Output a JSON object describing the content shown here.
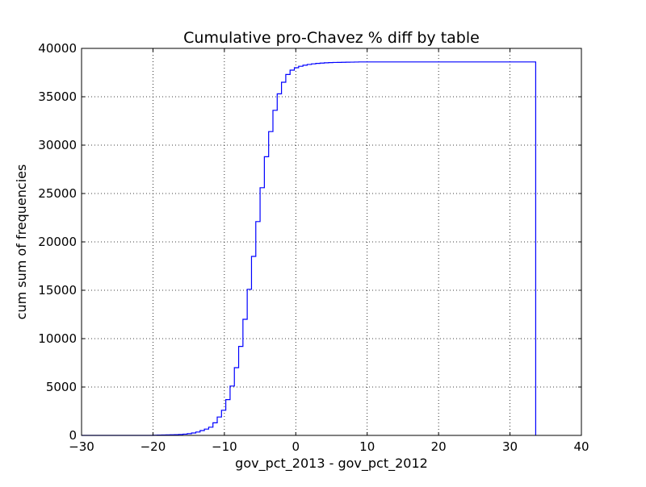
{
  "chart_data": {
    "type": "line",
    "title": "Cumulative pro-Chavez % diff by table",
    "xlabel": "gov_pct_2013 - gov_pct_2012",
    "ylabel": "cum sum of frequencies",
    "xlim": [
      -30,
      40
    ],
    "ylim": [
      0,
      40000
    ],
    "x_ticks": [
      -30,
      -20,
      -10,
      0,
      10,
      20,
      30,
      40
    ],
    "x_tick_labels": [
      "−30",
      "−20",
      "−10",
      "0",
      "10",
      "20",
      "30",
      "40"
    ],
    "y_ticks": [
      0,
      5000,
      10000,
      15000,
      20000,
      25000,
      30000,
      35000,
      40000
    ],
    "y_tick_labels": [
      "0",
      "5000",
      "10000",
      "15000",
      "20000",
      "25000",
      "30000",
      "35000",
      "40000"
    ],
    "grid": true,
    "grid_style": "dotted",
    "legend": "none",
    "histtype": "step",
    "line_color": "#0000ff",
    "series": [
      {
        "x": [
          -30,
          -20,
          -19.4,
          -18.8,
          -18.2,
          -17.6,
          -17.0,
          -16.4,
          -15.8,
          -15.2,
          -14.6,
          -14.0,
          -13.4,
          -12.8,
          -12.2,
          -11.6,
          -11.0,
          -10.4,
          -9.8,
          -9.2,
          -8.6,
          -8.0,
          -7.4,
          -6.8,
          -6.2,
          -5.6,
          -5.0,
          -4.4,
          -3.8,
          -3.2,
          -2.6,
          -2.0,
          -1.4,
          -0.8,
          -0.2,
          0.4,
          1.0,
          1.6,
          2.2,
          2.8,
          3.4,
          4.0,
          4.6,
          5.2,
          5.8,
          6.4,
          7.0,
          7.6,
          8.2,
          8.8,
          33.6
        ],
        "y": [
          0,
          20,
          30,
          40,
          50,
          60,
          80,
          100,
          130,
          180,
          250,
          350,
          500,
          650,
          850,
          1300,
          1900,
          2600,
          3700,
          5100,
          7000,
          9200,
          12000,
          15100,
          18500,
          22100,
          25600,
          28800,
          31400,
          33600,
          35300,
          36500,
          37300,
          37750,
          38000,
          38150,
          38260,
          38340,
          38400,
          38450,
          38480,
          38510,
          38530,
          38545,
          38555,
          38565,
          38575,
          38580,
          38590,
          38600,
          38600
        ]
      }
    ]
  }
}
